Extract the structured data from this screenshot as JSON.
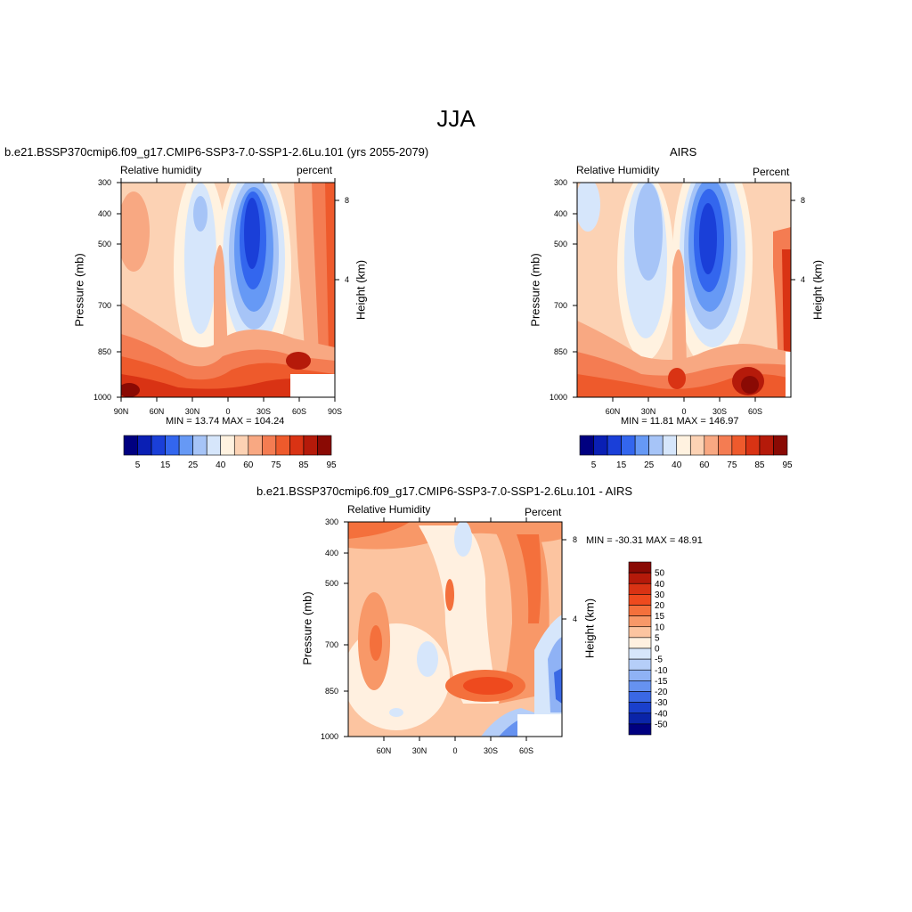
{
  "title": "JJA",
  "panels": [
    {
      "id": "model",
      "subtitle": "b.e21.BSSP370cmip6.f09_g17.CMIP6-SSP3-7.0-SSP1-2.6Lu.101 (yrs 2055-2079)",
      "left_label": "Relative humidity",
      "right_label": "percent",
      "ylabel": "Pressure (mb)",
      "y2label": "Height (km)",
      "minmax_text": "MIN =  13.74  MAX = 104.24",
      "x_ticks": [
        "90N",
        "60N",
        "30N",
        "0",
        "30S",
        "60S",
        "90S"
      ],
      "y_ticks": [
        "300",
        "400",
        "500",
        "700",
        "850",
        "1000"
      ],
      "y2_ticks": [
        "8",
        "4"
      ]
    },
    {
      "id": "obs",
      "subtitle": "AIRS",
      "left_label": "Relative Humidity",
      "right_label": "Percent",
      "ylabel": "Pressure (mb)",
      "y2label": "Height (km)",
      "minmax_text": "MIN =  11.81  MAX = 146.97",
      "x_ticks": [
        "60N",
        "30N",
        "0",
        "30S",
        "60S"
      ],
      "y_ticks": [
        "300",
        "400",
        "500",
        "700",
        "850",
        "1000"
      ],
      "y2_ticks": [
        "8",
        "4"
      ]
    },
    {
      "id": "diff",
      "subtitle": "b.e21.BSSP370cmip6.f09_g17.CMIP6-SSP3-7.0-SSP1-2.6Lu.101 - AIRS",
      "left_label": "Relative Humidity",
      "right_label": "Percent",
      "ylabel": "Pressure (mb)",
      "y2label": "Height (km)",
      "minmax_text": "MIN = -30.31  MAX =  48.91",
      "x_ticks": [
        "60N",
        "30N",
        "0",
        "30S",
        "60S"
      ],
      "y_ticks": [
        "300",
        "400",
        "500",
        "700",
        "850",
        "1000"
      ],
      "y2_ticks": [
        "8",
        "4"
      ]
    }
  ],
  "colorbar_abs": {
    "labels": [
      "5",
      "15",
      "25",
      "40",
      "60",
      "75",
      "85",
      "95"
    ],
    "colors": [
      "#000080",
      "#0a1fb4",
      "#1a3fd8",
      "#3366ee",
      "#6699f5",
      "#a6c4f7",
      "#d6e6fb",
      "#fff2e0",
      "#fcd2b4",
      "#f8a882",
      "#f47c52",
      "#ee5a2c",
      "#d93314",
      "#b51a0a",
      "#8a0a04"
    ]
  },
  "colorbar_diff": {
    "labels": [
      "50",
      "40",
      "30",
      "20",
      "15",
      "10",
      "5",
      "0",
      "-5",
      "-10",
      "-15",
      "-20",
      "-30",
      "-40",
      "-50"
    ],
    "colors": [
      "#8a0a04",
      "#b51a0a",
      "#d93314",
      "#ee4a1e",
      "#f4703c",
      "#f89868",
      "#fcc4a0",
      "#fff0e0",
      "#d6e6fb",
      "#b5cef8",
      "#8fb2f5",
      "#6692f0",
      "#3a68e4",
      "#1a40cc",
      "#0a24a8",
      "#000080"
    ]
  },
  "chart_data": [
    {
      "type": "heatmap",
      "title": "b.e21.BSSP370cmip6.f09_g17.CMIP6-SSP3-7.0-SSP1-2.6Lu.101 (yrs 2055-2079)",
      "variable": "Relative humidity",
      "units": "percent",
      "xlabel": "",
      "ylabel": "Pressure (mb)",
      "y2label": "Height (km)",
      "x_range": [
        "90N",
        "90S"
      ],
      "y_range": [
        1000,
        300
      ],
      "y_scale": "log",
      "min": 13.74,
      "max": 104.24,
      "levels": [
        5,
        10,
        15,
        20,
        25,
        30,
        40,
        50,
        60,
        65,
        75,
        80,
        85,
        90,
        95
      ]
    },
    {
      "type": "heatmap",
      "title": "AIRS",
      "variable": "Relative Humidity",
      "units": "Percent",
      "xlabel": "",
      "ylabel": "Pressure (mb)",
      "y2label": "Height (km)",
      "y_range": [
        1000,
        300
      ],
      "y_scale": "log",
      "min": 11.81,
      "max": 146.97,
      "levels": [
        5,
        10,
        15,
        20,
        25,
        30,
        40,
        50,
        60,
        65,
        75,
        80,
        85,
        90,
        95
      ]
    },
    {
      "type": "heatmap",
      "title": "b.e21.BSSP370cmip6.f09_g17.CMIP6-SSP3-7.0-SSP1-2.6Lu.101 - AIRS",
      "variable": "Relative Humidity",
      "units": "Percent",
      "xlabel": "",
      "ylabel": "Pressure (mb)",
      "y2label": "Height (km)",
      "y_range": [
        1000,
        300
      ],
      "y_scale": "log",
      "min": -30.31,
      "max": 48.91,
      "levels": [
        -50,
        -40,
        -30,
        -20,
        -15,
        -10,
        -5,
        0,
        5,
        10,
        15,
        20,
        30,
        40,
        50
      ]
    }
  ]
}
